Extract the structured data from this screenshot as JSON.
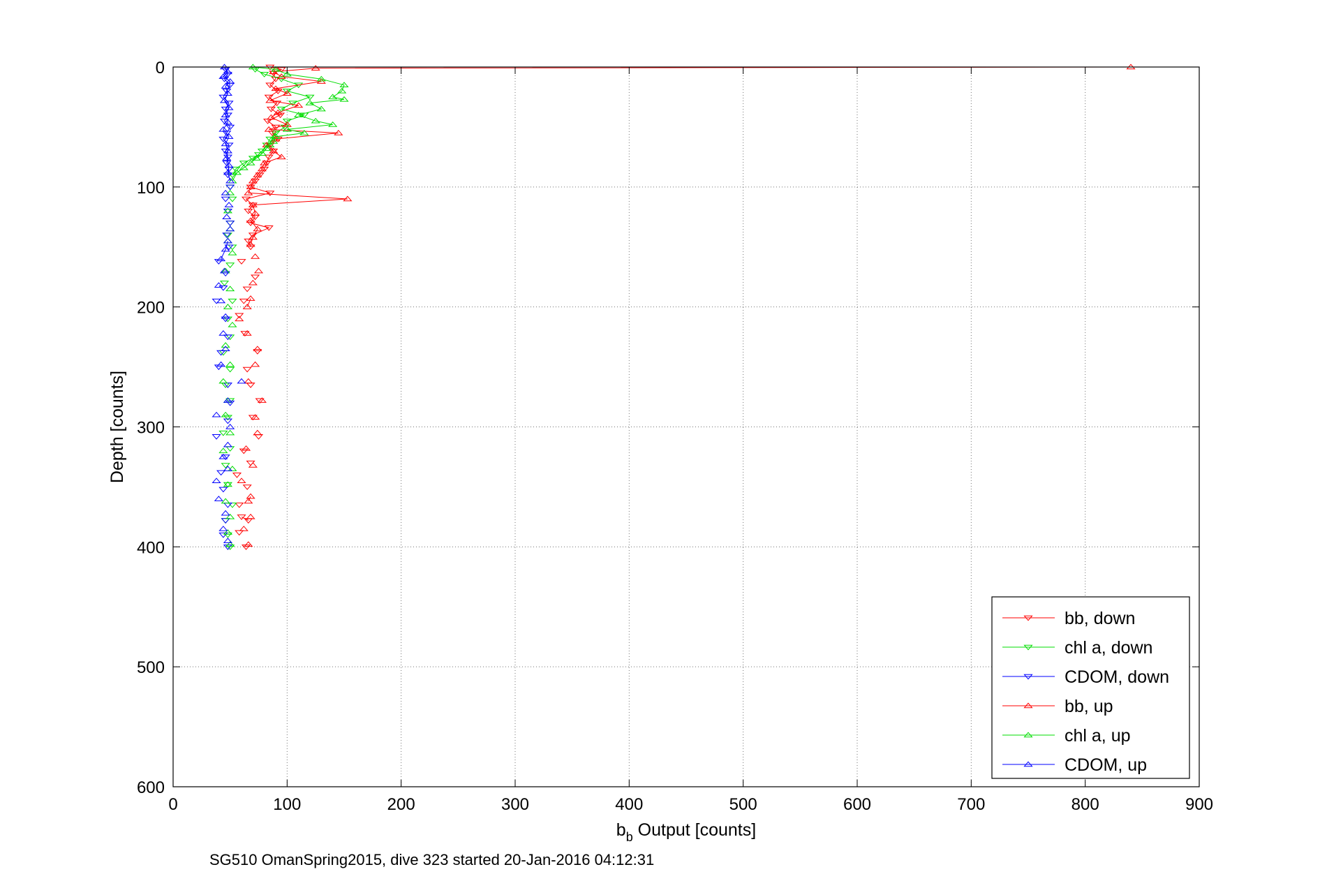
{
  "chart_data": {
    "type": "scatter",
    "title": "",
    "xlabel_main": "b",
    "xlabel_sub": "b",
    "xlabel_rest": " Output [counts]",
    "ylabel": "Depth [counts]",
    "caption": "SG510 OmanSpring2015, dive 323 started 20-Jan-2016 04:12:31",
    "xlim": [
      0,
      900
    ],
    "ylim": [
      0,
      600
    ],
    "y_reversed": true,
    "xticks": [
      0,
      100,
      200,
      300,
      400,
      500,
      600,
      700,
      800,
      900
    ],
    "yticks": [
      0,
      100,
      200,
      300,
      400,
      500,
      600
    ],
    "grid": true,
    "legend_position": "bottom-right",
    "series": [
      {
        "name": "bb, down",
        "color": "#ff0000",
        "marker": "triangle-down",
        "points": [
          [
            85,
            0
          ],
          [
            95,
            2
          ],
          [
            88,
            5
          ],
          [
            90,
            10
          ],
          [
            85,
            15
          ],
          [
            92,
            20
          ],
          [
            84,
            25
          ],
          [
            91,
            30
          ],
          [
            86,
            35
          ],
          [
            94,
            40
          ],
          [
            83,
            45
          ],
          [
            90,
            50
          ],
          [
            87,
            55
          ],
          [
            92,
            60
          ],
          [
            85,
            65
          ],
          [
            88,
            70
          ],
          [
            84,
            75
          ],
          [
            82,
            80
          ],
          [
            80,
            85
          ],
          [
            76,
            90
          ],
          [
            72,
            95
          ],
          [
            68,
            100
          ],
          [
            85,
            105
          ],
          [
            64,
            110
          ],
          [
            70,
            115
          ],
          [
            66,
            120
          ],
          [
            72,
            125
          ],
          [
            68,
            130
          ],
          [
            84,
            134
          ],
          [
            70,
            140
          ],
          [
            66,
            145
          ],
          [
            68,
            150
          ],
          [
            60,
            162
          ],
          [
            72,
            175
          ],
          [
            65,
            185
          ],
          [
            62,
            195
          ],
          [
            58,
            207
          ],
          [
            63,
            222
          ],
          [
            74,
            237
          ],
          [
            65,
            252
          ],
          [
            68,
            265
          ],
          [
            76,
            278
          ],
          [
            70,
            292
          ],
          [
            75,
            308
          ],
          [
            62,
            320
          ],
          [
            68,
            330
          ],
          [
            56,
            340
          ],
          [
            65,
            350
          ],
          [
            58,
            365
          ],
          [
            60,
            375
          ],
          [
            66,
            378
          ],
          [
            58,
            388
          ],
          [
            64,
            400
          ]
        ]
      },
      {
        "name": "chl a, down",
        "color": "#00dd00",
        "marker": "triangle-down",
        "points": [
          [
            72,
            2
          ],
          [
            80,
            6
          ],
          [
            95,
            10
          ],
          [
            110,
            15
          ],
          [
            100,
            20
          ],
          [
            120,
            25
          ],
          [
            105,
            30
          ],
          [
            95,
            35
          ],
          [
            115,
            40
          ],
          [
            100,
            45
          ],
          [
            98,
            50
          ],
          [
            90,
            55
          ],
          [
            85,
            60
          ],
          [
            82,
            65
          ],
          [
            78,
            70
          ],
          [
            75,
            73
          ],
          [
            70,
            76
          ],
          [
            62,
            80
          ],
          [
            55,
            85
          ],
          [
            52,
            90
          ],
          [
            50,
            100
          ],
          [
            52,
            110
          ],
          [
            48,
            120
          ],
          [
            50,
            130
          ],
          [
            48,
            140
          ],
          [
            52,
            150
          ],
          [
            50,
            165
          ],
          [
            45,
            180
          ],
          [
            52,
            195
          ],
          [
            48,
            210
          ],
          [
            50,
            225
          ],
          [
            44,
            238
          ],
          [
            50,
            252
          ],
          [
            46,
            265
          ],
          [
            50,
            278
          ],
          [
            48,
            292
          ],
          [
            44,
            305
          ],
          [
            50,
            318
          ],
          [
            46,
            332
          ],
          [
            48,
            348
          ],
          [
            52,
            365
          ],
          [
            46,
            378
          ],
          [
            48,
            390
          ],
          [
            50,
            400
          ]
        ]
      },
      {
        "name": "CDOM, down",
        "color": "#0000ff",
        "marker": "triangle-down",
        "points": [
          [
            46,
            2
          ],
          [
            48,
            6
          ],
          [
            45,
            10
          ],
          [
            50,
            15
          ],
          [
            47,
            20
          ],
          [
            44,
            25
          ],
          [
            49,
            30
          ],
          [
            46,
            35
          ],
          [
            48,
            40
          ],
          [
            45,
            45
          ],
          [
            50,
            50
          ],
          [
            47,
            55
          ],
          [
            44,
            60
          ],
          [
            49,
            65
          ],
          [
            46,
            70
          ],
          [
            48,
            75
          ],
          [
            47,
            80
          ],
          [
            49,
            85
          ],
          [
            48,
            90
          ],
          [
            50,
            100
          ],
          [
            46,
            110
          ],
          [
            48,
            120
          ],
          [
            50,
            130
          ],
          [
            47,
            140
          ],
          [
            49,
            150
          ],
          [
            40,
            162
          ],
          [
            46,
            172
          ],
          [
            44,
            184
          ],
          [
            38,
            195
          ],
          [
            46,
            210
          ],
          [
            48,
            225
          ],
          [
            42,
            238
          ],
          [
            40,
            250
          ],
          [
            48,
            265
          ],
          [
            50,
            280
          ],
          [
            48,
            295
          ],
          [
            38,
            308
          ],
          [
            46,
            325
          ],
          [
            42,
            338
          ],
          [
            44,
            352
          ],
          [
            48,
            365
          ],
          [
            46,
            378
          ],
          [
            44,
            390
          ],
          [
            48,
            400
          ]
        ]
      },
      {
        "name": "bb, up",
        "color": "#ff0000",
        "marker": "triangle-up",
        "points": [
          [
            840,
            0
          ],
          [
            125,
            1
          ],
          [
            88,
            4
          ],
          [
            95,
            8
          ],
          [
            130,
            12
          ],
          [
            90,
            18
          ],
          [
            100,
            22
          ],
          [
            85,
            28
          ],
          [
            110,
            32
          ],
          [
            92,
            38
          ],
          [
            86,
            42
          ],
          [
            100,
            48
          ],
          [
            84,
            52
          ],
          [
            145,
            55
          ],
          [
            90,
            60
          ],
          [
            82,
            65
          ],
          [
            88,
            70
          ],
          [
            95,
            75
          ],
          [
            80,
            80
          ],
          [
            78,
            85
          ],
          [
            74,
            90
          ],
          [
            70,
            95
          ],
          [
            68,
            100
          ],
          [
            66,
            105
          ],
          [
            153,
            110
          ],
          [
            70,
            115
          ],
          [
            72,
            122
          ],
          [
            68,
            128
          ],
          [
            74,
            135
          ],
          [
            70,
            142
          ],
          [
            68,
            148
          ],
          [
            72,
            158
          ],
          [
            75,
            170
          ],
          [
            70,
            180
          ],
          [
            68,
            193
          ],
          [
            65,
            200
          ],
          [
            58,
            210
          ],
          [
            65,
            222
          ],
          [
            74,
            235
          ],
          [
            72,
            248
          ],
          [
            66,
            262
          ],
          [
            78,
            278
          ],
          [
            72,
            292
          ],
          [
            74,
            305
          ],
          [
            64,
            318
          ],
          [
            70,
            332
          ],
          [
            60,
            345
          ],
          [
            68,
            358
          ],
          [
            66,
            362
          ],
          [
            68,
            375
          ],
          [
            62,
            385
          ],
          [
            66,
            398
          ]
        ]
      },
      {
        "name": "chl a, up",
        "color": "#00dd00",
        "marker": "triangle-up",
        "points": [
          [
            70,
            0
          ],
          [
            90,
            2
          ],
          [
            100,
            6
          ],
          [
            130,
            10
          ],
          [
            150,
            15
          ],
          [
            148,
            20
          ],
          [
            140,
            25
          ],
          [
            150,
            27
          ],
          [
            120,
            30
          ],
          [
            130,
            35
          ],
          [
            110,
            40
          ],
          [
            125,
            45
          ],
          [
            140,
            48
          ],
          [
            100,
            52
          ],
          [
            115,
            55
          ],
          [
            90,
            58
          ],
          [
            88,
            62
          ],
          [
            85,
            65
          ],
          [
            82,
            68
          ],
          [
            78,
            72
          ],
          [
            73,
            76
          ],
          [
            68,
            80
          ],
          [
            62,
            84
          ],
          [
            56,
            88
          ],
          [
            52,
            95
          ],
          [
            50,
            105
          ],
          [
            48,
            120
          ],
          [
            50,
            135
          ],
          [
            48,
            145
          ],
          [
            52,
            155
          ],
          [
            46,
            170
          ],
          [
            50,
            185
          ],
          [
            48,
            200
          ],
          [
            52,
            215
          ],
          [
            46,
            232
          ],
          [
            50,
            248
          ],
          [
            44,
            262
          ],
          [
            48,
            278
          ],
          [
            46,
            290
          ],
          [
            50,
            305
          ],
          [
            44,
            320
          ],
          [
            52,
            335
          ],
          [
            48,
            348
          ],
          [
            46,
            362
          ],
          [
            50,
            375
          ],
          [
            48,
            388
          ],
          [
            50,
            398
          ]
        ]
      },
      {
        "name": "CDOM, up",
        "color": "#0000ff",
        "marker": "triangle-up",
        "points": [
          [
            45,
            0
          ],
          [
            48,
            4
          ],
          [
            44,
            8
          ],
          [
            50,
            12
          ],
          [
            46,
            16
          ],
          [
            48,
            22
          ],
          [
            45,
            28
          ],
          [
            49,
            34
          ],
          [
            46,
            40
          ],
          [
            48,
            46
          ],
          [
            44,
            52
          ],
          [
            49,
            58
          ],
          [
            46,
            64
          ],
          [
            48,
            70
          ],
          [
            47,
            76
          ],
          [
            49,
            82
          ],
          [
            48,
            88
          ],
          [
            50,
            95
          ],
          [
            46,
            105
          ],
          [
            49,
            115
          ],
          [
            47,
            125
          ],
          [
            50,
            135
          ],
          [
            48,
            145
          ],
          [
            46,
            152
          ],
          [
            42,
            160
          ],
          [
            45,
            170
          ],
          [
            40,
            182
          ],
          [
            42,
            195
          ],
          [
            46,
            208
          ],
          [
            44,
            222
          ],
          [
            46,
            235
          ],
          [
            42,
            248
          ],
          [
            60,
            262
          ],
          [
            48,
            278
          ],
          [
            38,
            290
          ],
          [
            50,
            300
          ],
          [
            48,
            315
          ],
          [
            44,
            325
          ],
          [
            48,
            335
          ],
          [
            38,
            345
          ],
          [
            40,
            360
          ],
          [
            46,
            372
          ],
          [
            44,
            385
          ],
          [
            48,
            395
          ]
        ]
      }
    ]
  }
}
